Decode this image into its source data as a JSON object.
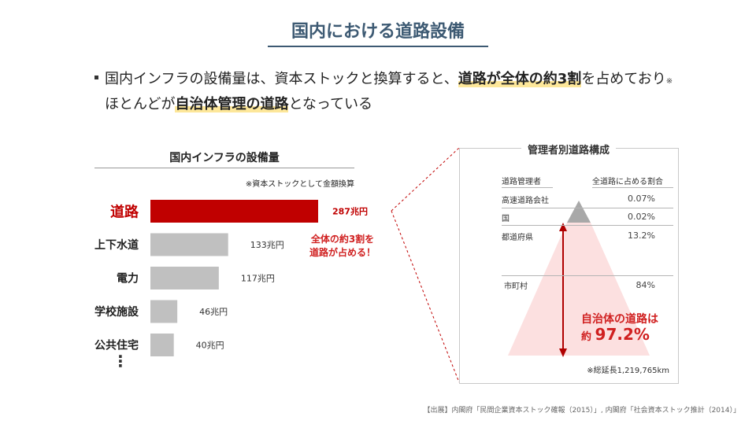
{
  "title": "国内における道路設備",
  "summary": {
    "line1_part1": "国内インフラの設備量は、資本ストックと換算すると、",
    "line1_highlight": "道路が全体の約3割",
    "line1_part2": "を占めており",
    "line1_mark": "※",
    "line2_part1": "ほとんどが",
    "line2_highlight": "自治体管理の道路",
    "line2_part2": "となっている"
  },
  "chart_data": [
    {
      "type": "bar",
      "orientation": "horizontal",
      "title": "国内インフラの設備量",
      "note": "※資本ストックとして金額換算",
      "unit": "兆円",
      "categories": [
        "道路",
        "上下水道",
        "電力",
        "学校施設",
        "公共住宅"
      ],
      "values": [
        287,
        133,
        117,
        46,
        40
      ],
      "value_labels": [
        "287兆円",
        "133兆円",
        "117兆円",
        "46兆円",
        "40兆円"
      ],
      "highlight_index": 0,
      "colors": {
        "highlight": "#c00000",
        "default": "#c0c0c0"
      },
      "continuation": "⋮",
      "callout": [
        "全体の約3割を",
        "道路が占める！"
      ]
    },
    {
      "type": "table",
      "title": "管理者別道路構成",
      "columns": [
        "道路管理者",
        "全道路に占める割合"
      ],
      "rows": [
        {
          "name": "高速道路会社",
          "share": 0.07,
          "label": "0.07%"
        },
        {
          "name": "国",
          "share": 0.02,
          "label": "0.02%"
        },
        {
          "name": "都道府県",
          "share": 13.2,
          "label": "13.2%"
        },
        {
          "name": "市町村",
          "share": 84,
          "label": "84%"
        }
      ],
      "local_total_line1": "自治体の道路は",
      "local_total_prefix": "約",
      "local_total_value": "97.2%",
      "total_length_note": "※総延長1,219,765km",
      "colors": {
        "pyramid_light": "#fce0e0",
        "pyramid_top": "#a8a8a8",
        "arrow": "#b00000",
        "text": "#d02020"
      }
    }
  ],
  "source": "【出展】内閣府「民間企業資本ストック確報（2015）」, 内閣府「社会資本ストック推計（2014）」"
}
